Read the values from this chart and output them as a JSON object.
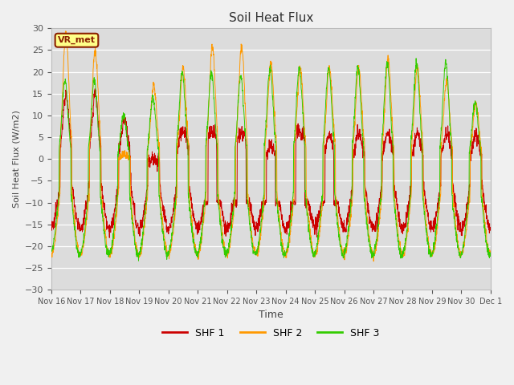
{
  "title": "Soil Heat Flux",
  "xlabel": "Time",
  "ylabel": "Soil Heat Flux (W/m2)",
  "ylim": [
    -30,
    30
  ],
  "yticks": [
    -30,
    -25,
    -20,
    -15,
    -10,
    -5,
    0,
    5,
    10,
    15,
    20,
    25,
    30
  ],
  "colors": {
    "SHF 1": "#cc0000",
    "SHF 2": "#ff9900",
    "SHF 3": "#33cc00"
  },
  "plot_bg": "#dcdcdc",
  "fig_bg": "#f0f0f0",
  "box_label": "VR_met",
  "box_facecolor": "#ffff88",
  "box_edgecolor": "#8B2000",
  "legend_labels": [
    "SHF 1",
    "SHF 2",
    "SHF 3"
  ],
  "x_tick_labels": [
    "Nov 16",
    "Nov 17",
    "Nov 18",
    "Nov 19",
    "Nov 20",
    "Nov 21",
    "Nov 22",
    "Nov 23",
    "Nov 24",
    "Nov 25",
    "Nov 26",
    "Nov 27",
    "Nov 28",
    "Nov 29",
    "Nov 30",
    "Dec 1"
  ],
  "num_days": 15,
  "pts_per_day": 144,
  "shf1_night": -16,
  "shf1_day_peaks": [
    15,
    15,
    9,
    -1,
    10,
    10,
    10,
    3,
    13,
    6,
    6,
    6,
    6,
    6,
    6
  ],
  "shf2_night": -22,
  "shf2_day_peaks": [
    29,
    25,
    1,
    17,
    21,
    26,
    26,
    22,
    21,
    21,
    21,
    23,
    21,
    18,
    13
  ],
  "shf3_night": -22,
  "shf3_day_peaks": [
    18,
    18,
    10,
    14,
    20,
    20,
    19,
    21,
    21,
    21,
    21,
    22,
    22,
    22,
    13
  ]
}
